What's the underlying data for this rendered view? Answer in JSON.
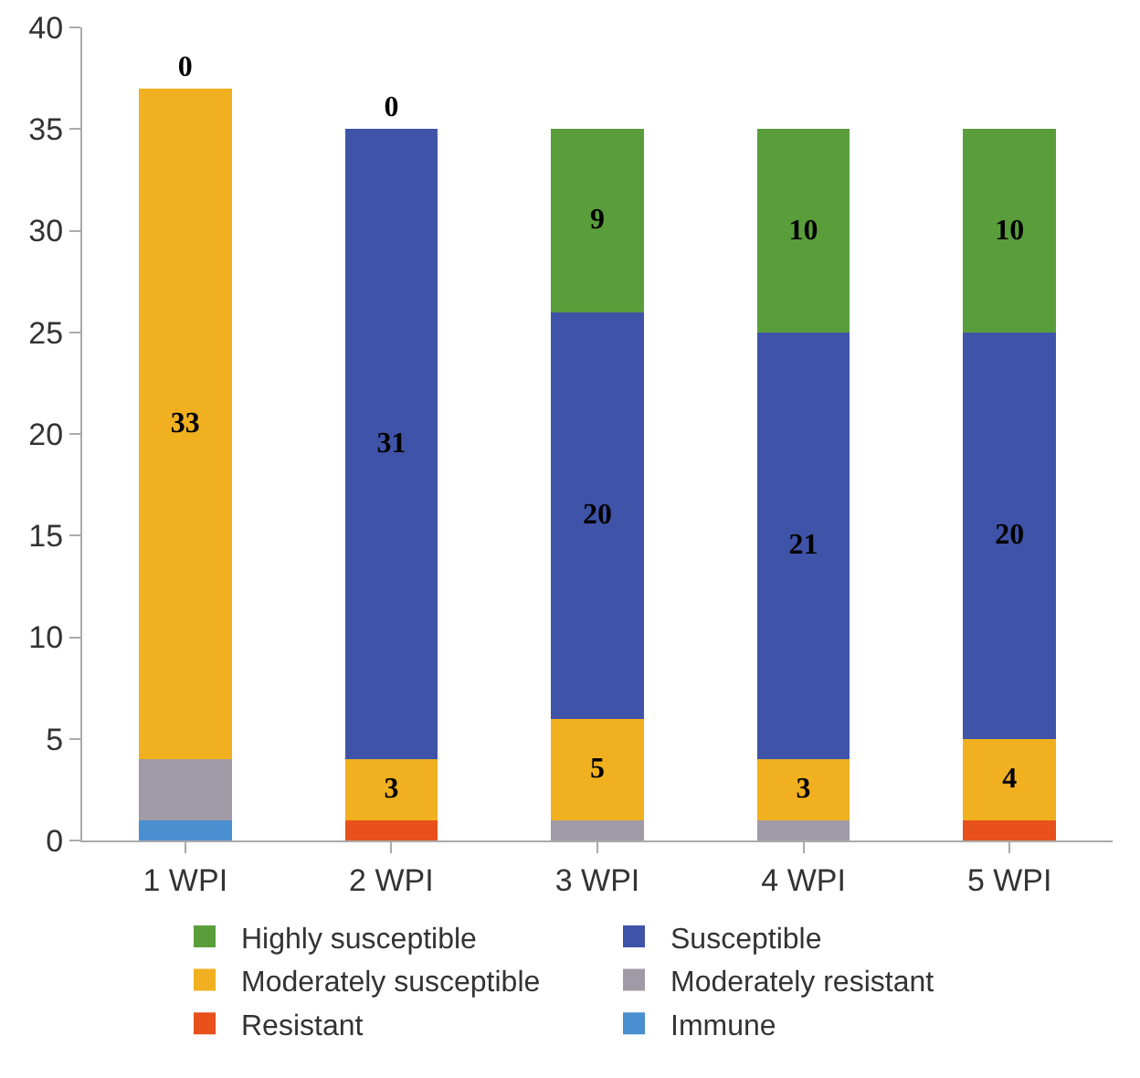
{
  "chart_data": {
    "type": "bar",
    "stacked": true,
    "categories": [
      "1 WPI",
      "2 WPI",
      "3 WPI",
      "4 WPI",
      "5 WPI"
    ],
    "ylim": [
      0,
      40
    ],
    "yticks": [
      0,
      5,
      10,
      15,
      20,
      25,
      30,
      35,
      40
    ],
    "grid": false,
    "legend": "bottom",
    "series": [
      {
        "name": "Immune",
        "color": "#4a8fd0",
        "values": [
          1,
          0,
          0,
          0,
          0
        ],
        "value_labels": [
          null,
          null,
          null,
          null,
          null
        ]
      },
      {
        "name": "Resistant",
        "color": "#e8501c",
        "values": [
          0,
          1,
          0,
          0,
          1
        ],
        "value_labels": [
          null,
          null,
          null,
          null,
          null
        ]
      },
      {
        "name": "Moderately resistant",
        "color": "#a09aa6",
        "values": [
          3,
          0,
          1,
          1,
          0
        ],
        "value_labels": [
          null,
          null,
          null,
          null,
          null
        ]
      },
      {
        "name": "Moderately susceptible",
        "color": "#f0b020",
        "values": [
          33,
          3,
          5,
          3,
          4
        ],
        "value_labels": [
          "33",
          "3",
          "5",
          "3",
          "4"
        ]
      },
      {
        "name": "Susceptible",
        "color": "#3f54a8",
        "values": [
          0,
          31,
          20,
          21,
          20
        ],
        "value_labels": [
          null,
          "31",
          "20",
          "21",
          "20"
        ]
      },
      {
        "name": "Highly susceptible",
        "color": "#5a9e3c",
        "values": [
          0,
          0,
          9,
          10,
          10
        ],
        "value_labels": [
          "0",
          "0",
          "9",
          "10",
          "10"
        ]
      }
    ]
  }
}
